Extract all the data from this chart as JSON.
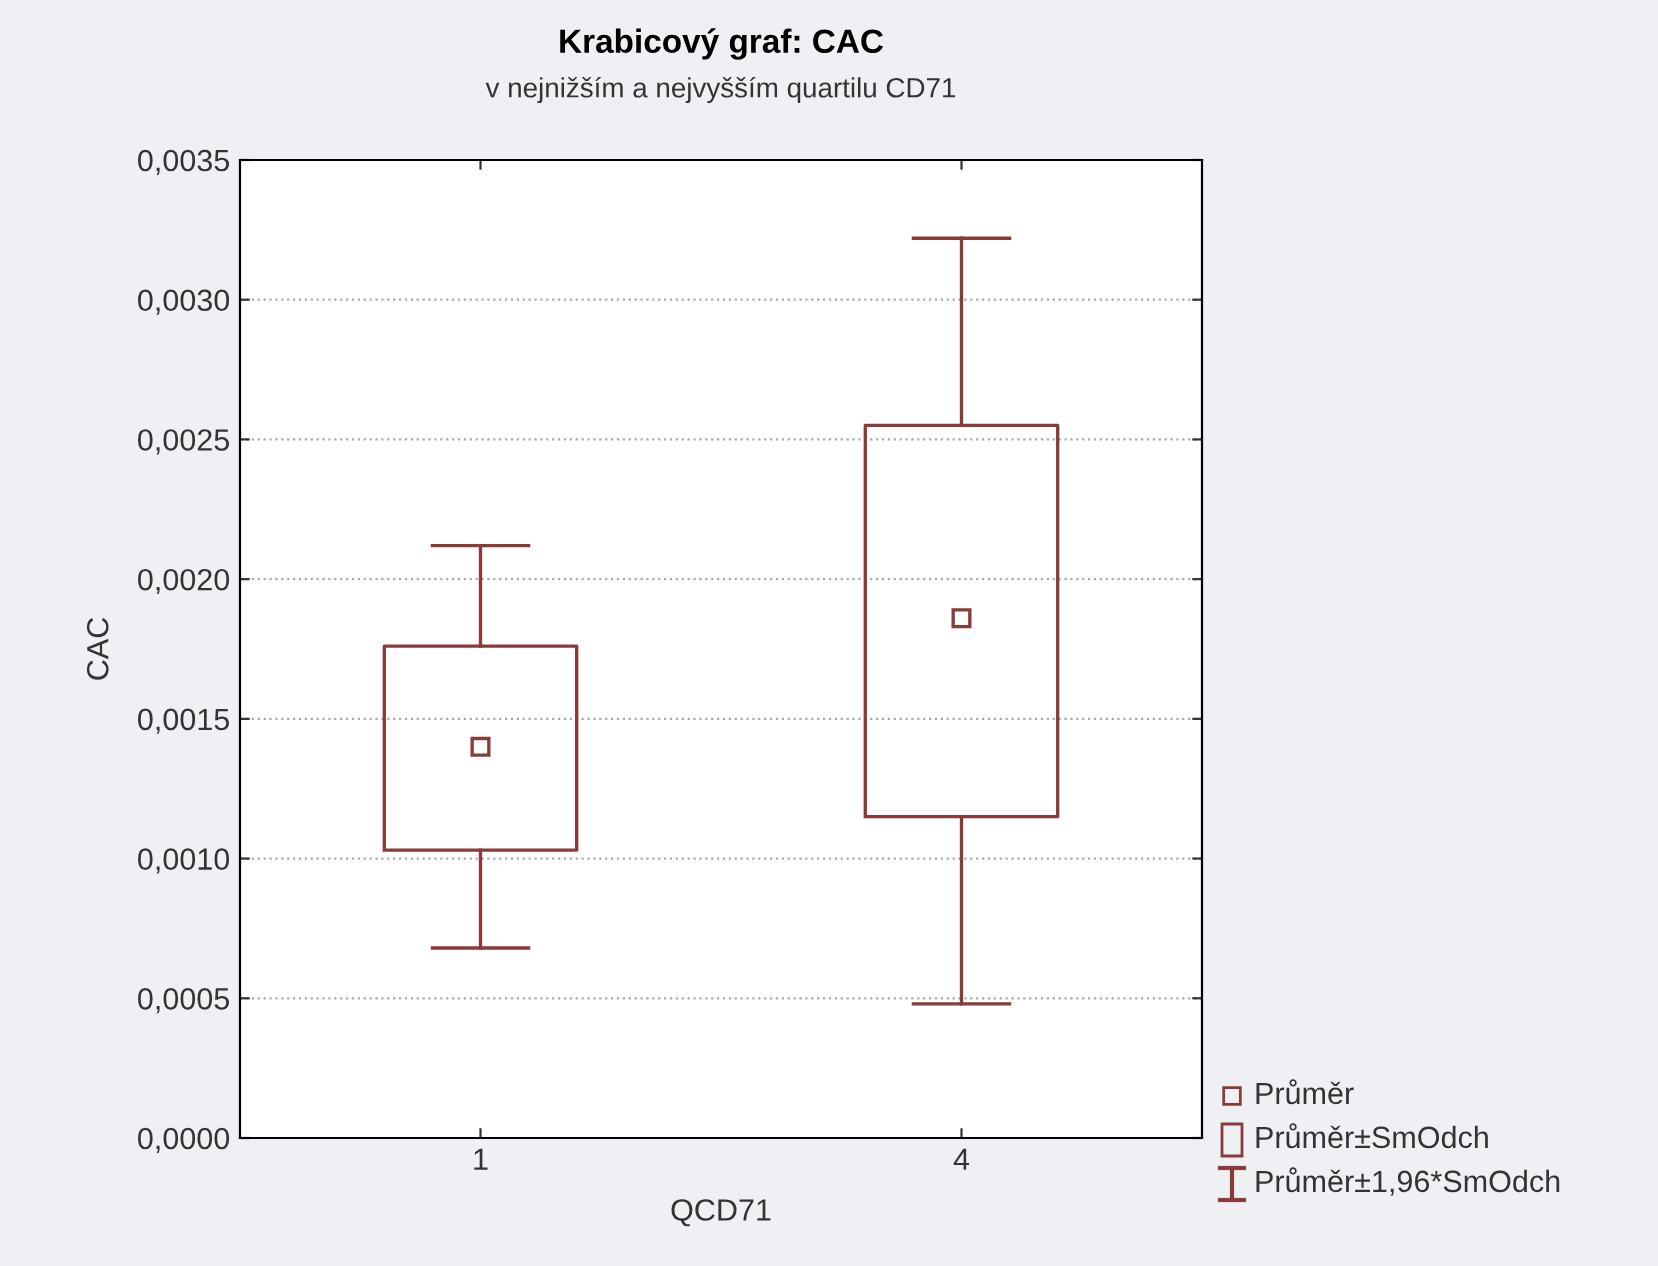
{
  "chart_data": {
    "type": "box",
    "title": "Krabicový graf: CAC",
    "subtitle": "v nejnižším a nejvyšším quartilu CD71",
    "xlabel": "QCD71",
    "ylabel": "CAC",
    "categories": [
      "1",
      "4"
    ],
    "boxes": [
      {
        "low": 0.00068,
        "q1": 0.00103,
        "median": 0.0014,
        "q3": 0.00176,
        "high": 0.00212
      },
      {
        "low": 0.00048,
        "q1": 0.00115,
        "median": 0.00186,
        "q3": 0.00255,
        "high": 0.00322
      }
    ],
    "color": "#8b3a3a",
    "marker": "square",
    "grid": "y",
    "ylim": [
      0,
      0.0035
    ],
    "yticks": [
      {
        "value": 0,
        "label": "0,0000"
      },
      {
        "value": 0.0005,
        "label": "0,0005"
      },
      {
        "value": 0.001,
        "label": "0,0010"
      },
      {
        "value": 0.0015,
        "label": "0,0015"
      },
      {
        "value": 0.002,
        "label": "0,0020"
      },
      {
        "value": 0.0025,
        "label": "0,0025"
      },
      {
        "value": 0.003,
        "label": "0,0030"
      },
      {
        "value": 0.0035,
        "label": "0,0035"
      }
    ],
    "annotations": [
      "Průměr",
      "Průměr±SmOdch",
      "Průměr±1,96*SmOdch"
    ]
  }
}
